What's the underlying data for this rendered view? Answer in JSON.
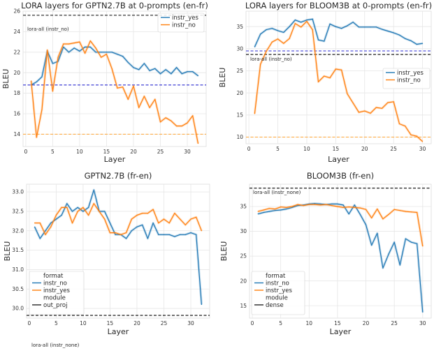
{
  "colors": {
    "instr_yes": "#1f77b4",
    "instr_no": "#ff7f0e",
    "ref_black": "#000000",
    "ref_blue": "#2b2bd0",
    "ref_orange": "#ffa533"
  },
  "chart_data": [
    {
      "type": "line",
      "title": "LORA layers for GPTN2.7B at 0-prompts (en-fr)",
      "xlabel": "Layer",
      "ylabel": "BLEU",
      "xlim": [
        -0.5,
        33.5
      ],
      "ylim": [
        12.8,
        26.0
      ],
      "xticks": [
        0,
        5,
        10,
        15,
        20,
        25,
        30
      ],
      "yticks": [
        14,
        16,
        18,
        20,
        22,
        24,
        26
      ],
      "grid": true,
      "legend": {
        "placement": "top-right",
        "title": "",
        "entries": [
          "instr_yes",
          "instr_no"
        ]
      },
      "x": [
        1,
        2,
        3,
        4,
        5,
        6,
        7,
        8,
        9,
        10,
        11,
        12,
        13,
        14,
        15,
        16,
        17,
        18,
        19,
        20,
        21,
        22,
        23,
        24,
        25,
        26,
        27,
        28,
        29,
        30,
        31,
        32
      ],
      "series": [
        {
          "name": "instr_yes",
          "color": "#1f77b4",
          "values": [
            18.8,
            19.1,
            19.6,
            22.1,
            20.9,
            21.1,
            22.5,
            22.0,
            22.4,
            22.1,
            22.5,
            22.5,
            22.0,
            22.0,
            22.0,
            22.0,
            21.8,
            21.6,
            21.0,
            20.5,
            20.3,
            20.9,
            20.2,
            20.4,
            19.9,
            20.3,
            19.9,
            20.5,
            19.9,
            20.1,
            20.1,
            19.7
          ]
        },
        {
          "name": "instr_no",
          "color": "#ff7f0e",
          "values": [
            19.2,
            13.7,
            16.4,
            22.2,
            18.2,
            21.5,
            22.8,
            22.8,
            22.9,
            23.0,
            21.9,
            23.1,
            22.4,
            21.5,
            21.8,
            20.4,
            18.5,
            18.6,
            17.4,
            18.7,
            16.6,
            17.7,
            16.6,
            17.4,
            15.2,
            15.6,
            15.3,
            14.8,
            14.8,
            15.1,
            15.8,
            13.1
          ]
        }
      ],
      "reference_lines": [
        {
          "y": 25.6,
          "color": "#000000",
          "label": "lora-all (instr_no)"
        },
        {
          "y": 18.8,
          "color": "#2b2bd0"
        },
        {
          "y": 14.0,
          "color": "#ffa533"
        }
      ]
    },
    {
      "type": "line",
      "title": "LORA layers for BLOOM3B at 0-prompts (en-fr)",
      "xlabel": "Layer",
      "ylabel": "BLEU",
      "xlim": [
        -0.5,
        31.5
      ],
      "ylim": [
        8.5,
        38.5
      ],
      "xticks": [
        0,
        5,
        10,
        15,
        20,
        25,
        30
      ],
      "yticks": [
        10,
        15,
        20,
        25,
        30,
        35
      ],
      "grid": true,
      "legend": {
        "placement": "center-right",
        "title": "",
        "entries": [
          "instr_yes",
          "instr_no"
        ]
      },
      "x": [
        1,
        2,
        3,
        4,
        5,
        6,
        7,
        8,
        9,
        10,
        11,
        12,
        13,
        14,
        15,
        16,
        17,
        18,
        19,
        20,
        21,
        22,
        23,
        24,
        25,
        26,
        27,
        28,
        29,
        30
      ],
      "series": [
        {
          "name": "instr_yes",
          "color": "#1f77b4",
          "values": [
            30.4,
            33.3,
            34.3,
            34.6,
            34.1,
            33.7,
            35.0,
            36.5,
            36.0,
            36.5,
            36.7,
            32.0,
            31.7,
            35.6,
            35.0,
            34.6,
            35.2,
            36.0,
            34.9,
            34.9,
            34.9,
            34.9,
            34.4,
            34.0,
            33.6,
            33.1,
            32.3,
            31.8,
            31.0,
            31.2
          ]
        },
        {
          "name": "instr_no",
          "color": "#ff7f0e",
          "values": [
            15.3,
            26.5,
            29.4,
            31.5,
            32.2,
            31.2,
            32.3,
            35.7,
            34.9,
            36.2,
            34.3,
            22.5,
            23.8,
            23.4,
            25.4,
            25.2,
            19.8,
            17.7,
            15.6,
            15.9,
            15.4,
            16.7,
            16.5,
            17.8,
            18.0,
            13.0,
            12.5,
            10.5,
            10.2,
            9.0
          ]
        }
      ],
      "reference_lines": [
        {
          "y": 29.5,
          "color": "#2b2bd0"
        },
        {
          "y": 28.7,
          "color": "#000000",
          "label": "lora-all (instr_no)"
        },
        {
          "y": 10.0,
          "color": "#ffa533"
        }
      ]
    },
    {
      "type": "line",
      "title": "GPTN2.7B (fr-en)",
      "xlabel": "Layer",
      "ylabel": "BLEU",
      "xlim": [
        -0.5,
        33.5
      ],
      "ylim": [
        29.75,
        33.2
      ],
      "xticks": [
        0,
        5,
        10,
        15,
        20,
        25,
        30
      ],
      "yticks": [
        30.0,
        30.5,
        31.0,
        31.5,
        32.0,
        32.5,
        33.0
      ],
      "grid": true,
      "legend": {
        "placement": "bottom-left",
        "title": "format",
        "entries": [
          "instr_no",
          "instr_yes"
        ],
        "module_title": "module",
        "module_entries": [
          "out_proj"
        ]
      },
      "x": [
        1,
        2,
        3,
        4,
        5,
        6,
        7,
        8,
        9,
        10,
        11,
        12,
        13,
        14,
        15,
        16,
        17,
        18,
        19,
        20,
        21,
        22,
        23,
        24,
        25,
        26,
        27,
        28,
        29,
        30,
        31,
        32
      ],
      "series": [
        {
          "name": "instr_no",
          "color": "#1f77b4",
          "values": [
            32.1,
            31.8,
            32.0,
            32.2,
            32.3,
            32.4,
            32.7,
            32.5,
            32.6,
            32.5,
            32.6,
            33.05,
            32.5,
            32.5,
            32.2,
            31.9,
            31.9,
            31.8,
            32.0,
            32.1,
            32.15,
            31.8,
            32.2,
            31.9,
            31.9,
            31.9,
            31.85,
            31.9,
            31.9,
            31.95,
            31.9,
            30.1
          ]
        },
        {
          "name": "instr_yes",
          "color": "#ff7f0e",
          "values": [
            32.2,
            32.2,
            31.9,
            32.1,
            32.4,
            32.6,
            32.6,
            32.2,
            32.5,
            32.6,
            32.4,
            32.7,
            32.5,
            32.3,
            31.95,
            31.95,
            31.9,
            31.95,
            32.3,
            32.4,
            32.45,
            32.45,
            32.55,
            32.2,
            32.3,
            32.2,
            32.45,
            32.3,
            32.15,
            32.3,
            32.35,
            32.0
          ]
        }
      ],
      "reference_lines": [
        {
          "y": 29.82,
          "color": "#000000"
        }
      ]
    },
    {
      "type": "line",
      "title": "BLOOM3B (fr-en)",
      "xlabel": "Layer",
      "ylabel": "BLEU",
      "xlim": [
        -0.5,
        31.5
      ],
      "ylim": [
        12.5,
        39.5
      ],
      "xticks": [
        0,
        5,
        10,
        15,
        20,
        25,
        30
      ],
      "yticks": [
        15,
        20,
        25,
        30,
        35
      ],
      "grid": true,
      "legend": {
        "placement": "bottom-left",
        "title": "format",
        "entries": [
          "instr_no",
          "instr_yes"
        ],
        "module_title": "module",
        "module_entries": [
          "dense"
        ]
      },
      "x": [
        1,
        2,
        3,
        4,
        5,
        6,
        7,
        8,
        9,
        10,
        11,
        12,
        13,
        14,
        15,
        16,
        17,
        18,
        19,
        20,
        21,
        22,
        23,
        24,
        25,
        26,
        27,
        28,
        29,
        30
      ],
      "series": [
        {
          "name": "instr_no",
          "color": "#1f77b4",
          "values": [
            33.5,
            33.8,
            34.0,
            34.2,
            34.3,
            34.5,
            34.8,
            35.2,
            35.3,
            35.5,
            35.6,
            35.5,
            35.4,
            35.5,
            35.5,
            35.3,
            33.5,
            35.3,
            33.4,
            31.3,
            27.2,
            29.6,
            22.6,
            25.4,
            27.8,
            23.2,
            28.5,
            27.8,
            27.5,
            13.7
          ]
        },
        {
          "name": "instr_yes",
          "color": "#ff7f0e",
          "values": [
            34.0,
            34.3,
            34.6,
            34.5,
            34.9,
            34.8,
            35.0,
            35.4,
            35.2,
            35.4,
            35.4,
            35.3,
            35.4,
            35.2,
            35.0,
            34.8,
            34.9,
            34.8,
            34.7,
            34.4,
            32.7,
            34.5,
            32.5,
            33.4,
            34.4,
            34.2,
            34.0,
            33.9,
            33.8,
            27.0
          ]
        }
      ],
      "reference_lines": [
        {
          "y": 38.7,
          "color": "#000000",
          "label": "lora-all (instr_none)"
        }
      ]
    }
  ],
  "figure_texts": {
    "footnote": "lora-all (instr_none)"
  }
}
